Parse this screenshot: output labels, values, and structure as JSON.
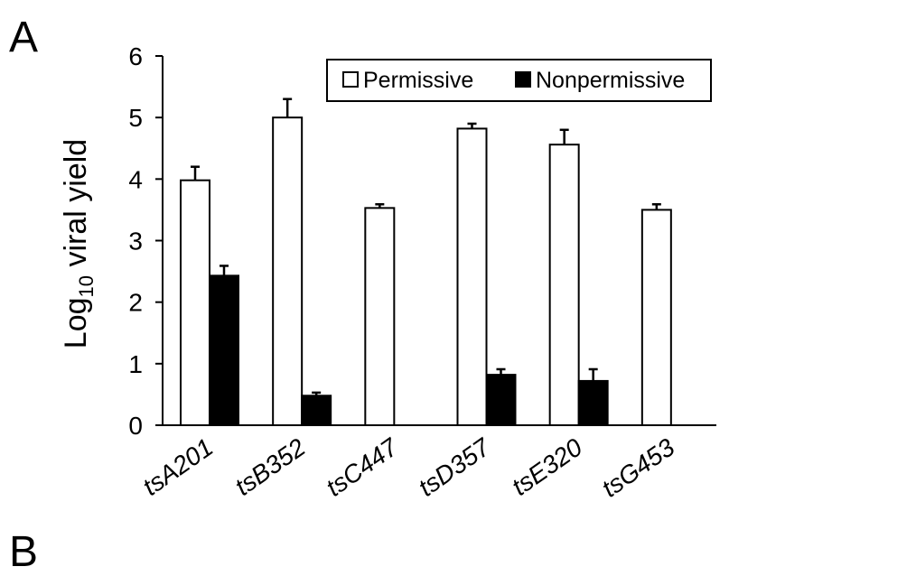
{
  "figure": {
    "panel_a_label": "A",
    "panel_b_label": "B"
  },
  "chart_data": {
    "type": "bar",
    "categories": [
      "tsA201",
      "tsB352",
      "tsC447",
      "tsD357",
      "tsE320",
      "tsG453"
    ],
    "series": [
      {
        "name": "Permissive",
        "values": [
          3.98,
          5.0,
          3.53,
          4.82,
          4.56,
          3.5
        ],
        "errors": [
          0.22,
          0.3,
          0.06,
          0.08,
          0.24,
          0.09
        ],
        "color": "#ffffff"
      },
      {
        "name": "Nonpermissive",
        "values": [
          2.43,
          0.48,
          null,
          0.82,
          0.72,
          null
        ],
        "errors": [
          0.16,
          0.05,
          null,
          0.09,
          0.19,
          null
        ],
        "color": "#000000"
      }
    ],
    "title": "",
    "ylabel": "Log",
    "ylabel_subscript": "10",
    "ylabel_rest": " viral yield",
    "xlabel": "",
    "ylim": [
      0,
      6
    ],
    "yticks": [
      0,
      1,
      2,
      3,
      4,
      5,
      6
    ],
    "grid": false,
    "legend_position": "top-right"
  }
}
